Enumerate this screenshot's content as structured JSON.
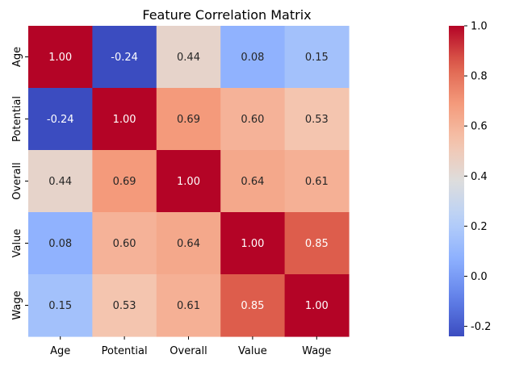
{
  "chart_data": {
    "type": "heatmap",
    "title": "Feature Correlation Matrix",
    "xlabel": "",
    "ylabel": "",
    "row_labels": [
      "Age",
      "Potential",
      "Overall",
      "Value",
      "Wage"
    ],
    "col_labels": [
      "Age",
      "Potential",
      "Overall",
      "Value",
      "Wage"
    ],
    "values": [
      [
        1.0,
        -0.24,
        0.44,
        0.08,
        0.15
      ],
      [
        -0.24,
        1.0,
        0.69,
        0.6,
        0.53
      ],
      [
        0.44,
        0.69,
        1.0,
        0.64,
        0.61
      ],
      [
        0.08,
        0.6,
        0.64,
        1.0,
        0.85
      ],
      [
        0.15,
        0.53,
        0.61,
        0.85,
        1.0
      ]
    ],
    "value_format": "0.00",
    "colormap": "coolwarm",
    "colorbar": {
      "range": [
        -0.24,
        1.0
      ],
      "ticks": [
        "-0.2",
        "0.0",
        "0.2",
        "0.4",
        "0.6",
        "0.8",
        "1.0"
      ]
    },
    "grid": false,
    "legend": "colorbar-right"
  }
}
